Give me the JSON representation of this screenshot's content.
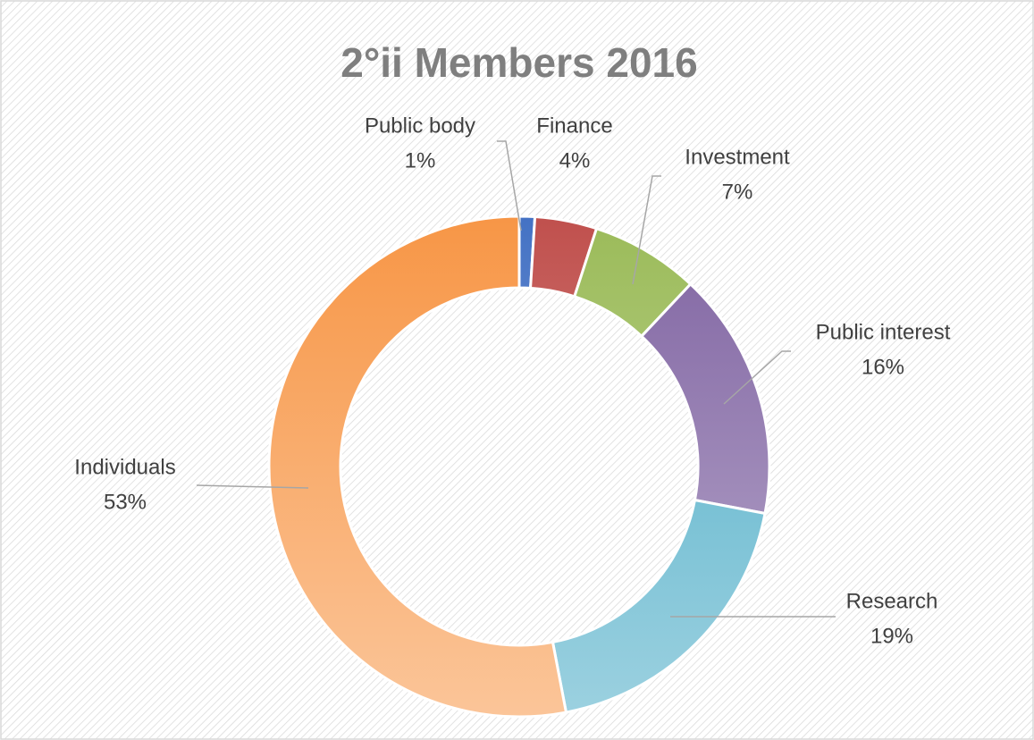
{
  "chart_data": {
    "type": "donut",
    "title": "2°ii Members 2016",
    "categories": [
      "Public body",
      "Finance",
      "Investment",
      "Public interest",
      "Research",
      "Individuals"
    ],
    "values": [
      1,
      4,
      7,
      16,
      19,
      53
    ],
    "value_labels": [
      "1%",
      "4%",
      "7%",
      "16%",
      "19%",
      "53%"
    ],
    "colors": [
      "#4472c4",
      "#c0504d",
      "#9bbb59",
      "#8064a2",
      "#4bacc6",
      "#f79646"
    ]
  }
}
